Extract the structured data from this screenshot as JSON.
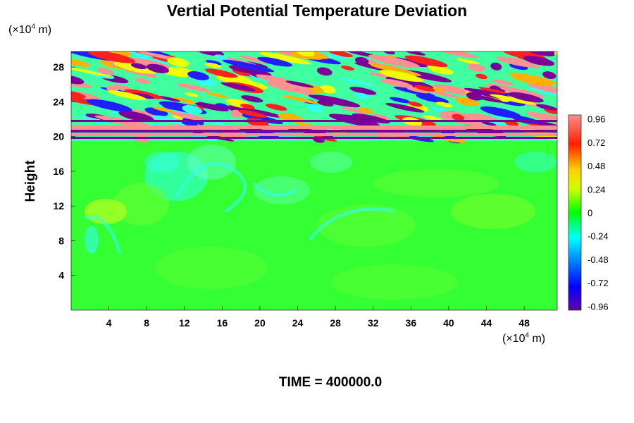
{
  "chart_data": {
    "type": "heatmap",
    "title": "Vertial Potential Temperature Deviation",
    "ylabel": "Height",
    "y_unit": {
      "prefix": "(×10",
      "exp": "4",
      "suffix": " m)"
    },
    "x_unit": {
      "prefix": "(×10",
      "exp": "4",
      "suffix": " m)"
    },
    "xlim": [
      0,
      51.5
    ],
    "ylim": [
      0,
      29.8
    ],
    "x_ticks": [
      "4",
      "8",
      "12",
      "16",
      "20",
      "24",
      "28",
      "32",
      "36",
      "40",
      "44",
      "48"
    ],
    "y_ticks": [
      "4",
      "8",
      "12",
      "16",
      "20",
      "24",
      "28"
    ],
    "colorbar": {
      "range": [
        -1.0,
        1.0
      ],
      "labels": [
        "0.96",
        "0.72",
        "0.48",
        "0.24",
        "0",
        "-0.24",
        "-0.48",
        "-0.72",
        "-0.96"
      ]
    },
    "grid": false,
    "annotation": {
      "label": "TIME = ",
      "value": "400000.0"
    }
  },
  "colors": {
    "background_field": "#33ff33",
    "high": "#ff8080",
    "low": "#8000a0"
  }
}
